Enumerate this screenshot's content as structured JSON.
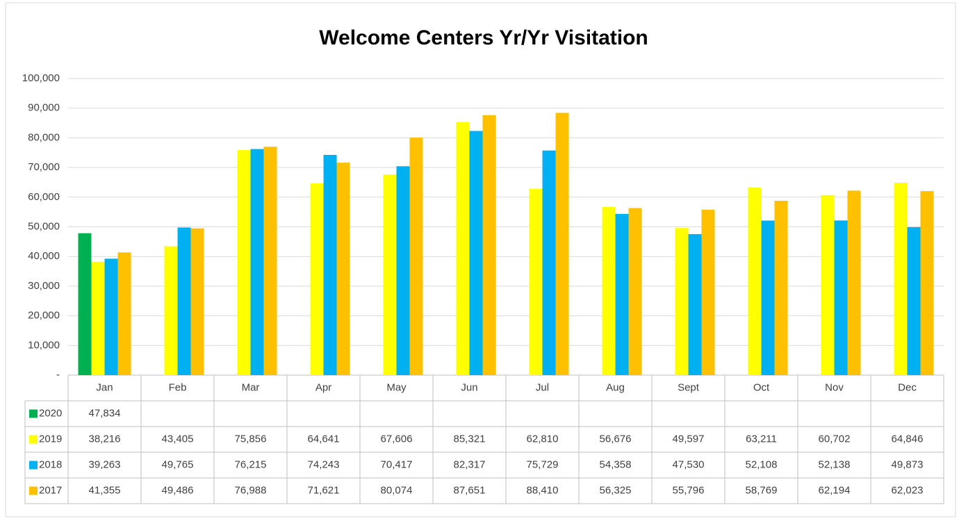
{
  "chart_data": {
    "type": "bar",
    "title": "Welcome Centers Yr/Yr Visitation",
    "categories": [
      "Jan",
      "Feb",
      "Mar",
      "Apr",
      "May",
      "Jun",
      "Jul",
      "Aug",
      "Sept",
      "Oct",
      "Nov",
      "Dec"
    ],
    "series": [
      {
        "name": "2020",
        "color": "#00b050",
        "values": [
          47834,
          null,
          null,
          null,
          null,
          null,
          null,
          null,
          null,
          null,
          null,
          null
        ],
        "value_labels": [
          "47,834",
          null,
          null,
          null,
          null,
          null,
          null,
          null,
          null,
          null,
          null,
          null
        ]
      },
      {
        "name": "2019",
        "color": "#ffff00",
        "values": [
          38216,
          43405,
          75856,
          64641,
          67606,
          85321,
          62810,
          56676,
          49597,
          63211,
          60702,
          64846
        ],
        "value_labels": [
          "38,216",
          "43,405",
          "75,856",
          "64,641",
          "67,606",
          "85,321",
          "62,810",
          "56,676",
          "49,597",
          "63,211",
          "60,702",
          "64,846"
        ]
      },
      {
        "name": "2018",
        "color": "#00b0f0",
        "values": [
          39263,
          49765,
          76215,
          74243,
          70417,
          82317,
          75729,
          54358,
          47530,
          52108,
          52138,
          49873
        ],
        "value_labels": [
          "39,263",
          "49,765",
          "76,215",
          "74,243",
          "70,417",
          "82,317",
          "75,729",
          "54,358",
          "47,530",
          "52,108",
          "52,138",
          "49,873"
        ]
      },
      {
        "name": "2017",
        "color": "#ffc000",
        "values": [
          41355,
          49486,
          76988,
          71621,
          80074,
          87651,
          88410,
          56325,
          55796,
          58769,
          62194,
          62023
        ],
        "value_labels": [
          "41,355",
          "49,486",
          "76,988",
          "71,621",
          "80,074",
          "87,651",
          "88,410",
          "56,325",
          "55,796",
          "58,769",
          "62,194",
          "62,023"
        ]
      }
    ],
    "ylim": [
      0,
      100000
    ],
    "yticks": [
      {
        "value": 0,
        "label": "-"
      },
      {
        "value": 10000,
        "label": "10,000"
      },
      {
        "value": 20000,
        "label": "20,000"
      },
      {
        "value": 30000,
        "label": "30,000"
      },
      {
        "value": 40000,
        "label": "40,000"
      },
      {
        "value": 50000,
        "label": "50,000"
      },
      {
        "value": 60000,
        "label": "60,000"
      },
      {
        "value": 70000,
        "label": "70,000"
      },
      {
        "value": 80000,
        "label": "80,000"
      },
      {
        "value": 90000,
        "label": "90,000"
      },
      {
        "value": 100000,
        "label": "100,000"
      }
    ],
    "grid": true
  }
}
